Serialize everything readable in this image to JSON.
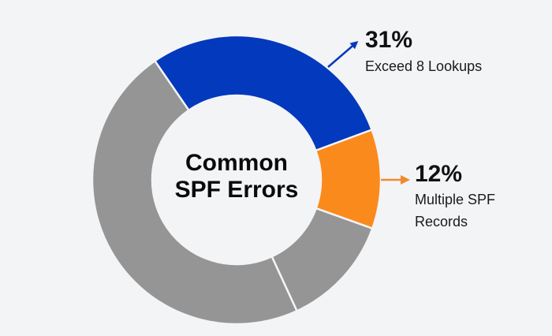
{
  "chart_data": {
    "type": "pie",
    "subtype": "donut",
    "title": "Common SPF Errors",
    "center_text": [
      "Common",
      "SPF Errors"
    ],
    "slices": [
      {
        "name": "Exceed 8 Lookups",
        "value": 31,
        "label": "31%",
        "color": "#0339bd",
        "start_deg": 325.5,
        "end_deg": 69.7,
        "annotated": true
      },
      {
        "name": "Multiple SPF Records",
        "value": 12,
        "label": "12%",
        "color": "#fb8a1c",
        "start_deg": 69.7,
        "end_deg": 109.7,
        "annotated": true
      },
      {
        "name": "Other (unlabeled)",
        "value": null,
        "label": "",
        "color": "#959595",
        "start_deg": 109.7,
        "end_deg": 155.3,
        "annotated": false
      },
      {
        "name": "Other (unlabeled)",
        "value": null,
        "label": "",
        "color": "#959595",
        "start_deg": 155.3,
        "end_deg": 325.5,
        "annotated": false
      }
    ],
    "legend": "none",
    "annotations": [
      {
        "pct": "31%",
        "text": "Exceed 8 Lookups",
        "arrow_color": "#0339bd"
      },
      {
        "pct": "12%",
        "text": "Multiple SPF Records",
        "arrow_color": "#f28a2a"
      }
    ]
  },
  "center": {
    "line1": "Common",
    "line2": "SPF Errors"
  },
  "labels": {
    "blue": {
      "pct": "31%",
      "desc": "Exceed 8 Lookups"
    },
    "orange": {
      "pct": "12%",
      "desc_line1": "Multiple SPF",
      "desc_line2": "Records"
    }
  },
  "colors": {
    "background": "#f3f4f6",
    "blue": "#0339bd",
    "orange": "#fb8a1c",
    "gray": "#959595",
    "divider": "#f3f4f6"
  }
}
